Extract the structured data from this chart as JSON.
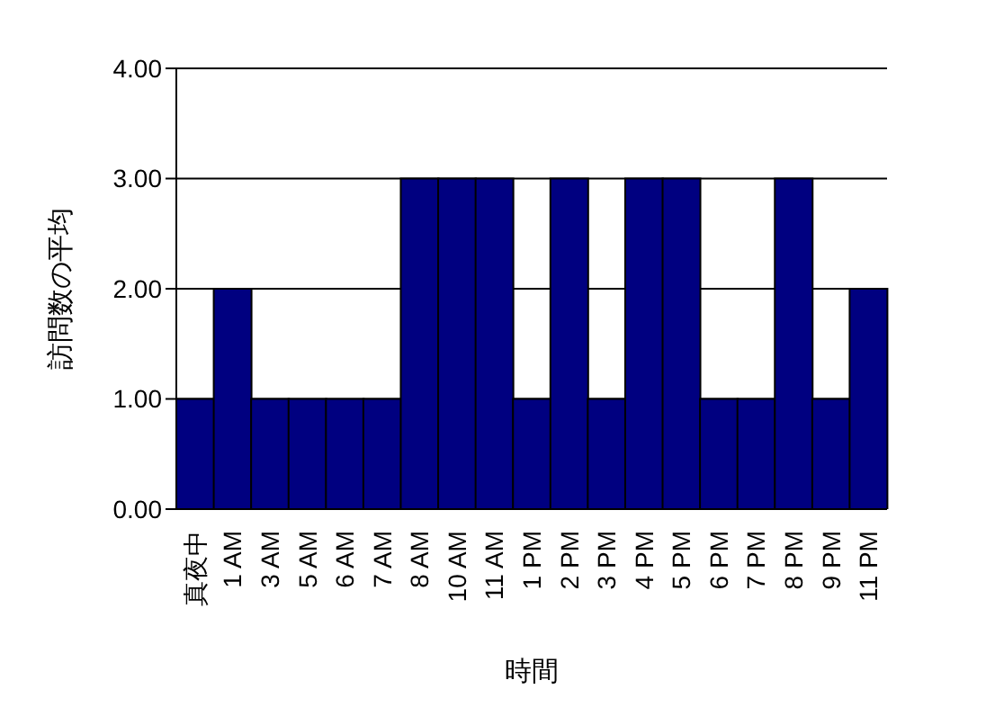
{
  "chart_data": {
    "type": "bar",
    "xlabel": "時間",
    "ylabel": "訪問数の平均",
    "categories": [
      "真夜中",
      "1 AM",
      "3 AM",
      "5 AM",
      "6 AM",
      "7 AM",
      "8 AM",
      "10 AM",
      "11 AM",
      "1 PM",
      "2 PM",
      "3 PM",
      "4 PM",
      "5 PM",
      "6 PM",
      "7 PM",
      "8 PM",
      "9 PM",
      "11 PM"
    ],
    "values": [
      1,
      2,
      1,
      1,
      1,
      1,
      3,
      3,
      3,
      1,
      3,
      1,
      3,
      3,
      1,
      1,
      3,
      1,
      2
    ],
    "color": "#000080",
    "ylim": [
      0,
      4
    ],
    "yticks": [
      {
        "value": 0,
        "label": "0.00"
      },
      {
        "value": 1,
        "label": "1.00"
      },
      {
        "value": 2,
        "label": "2.00"
      },
      {
        "value": 3,
        "label": "3.00"
      },
      {
        "value": 4,
        "label": "4.00"
      }
    ],
    "grid": "y"
  }
}
